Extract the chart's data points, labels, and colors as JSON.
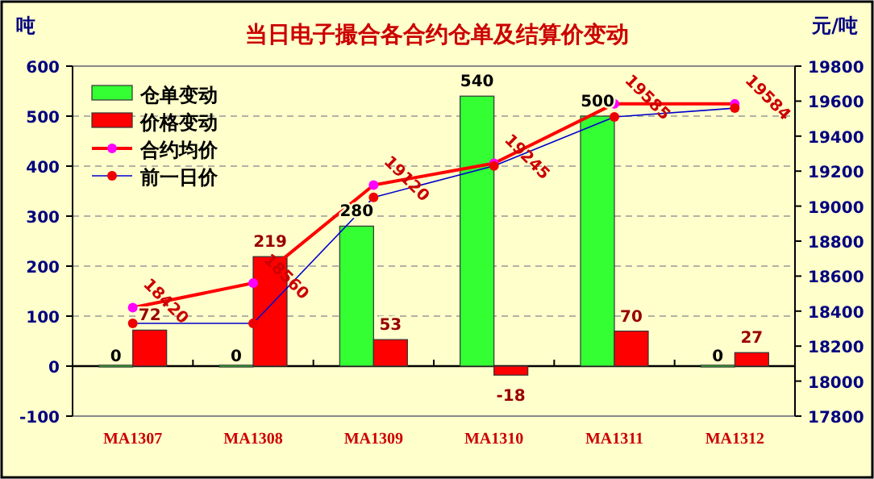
{
  "chart_data": {
    "type": "bar",
    "title": "当日电子撮合各合约仓单及结算价变动",
    "ylabel": "吨",
    "y2label": "元/吨",
    "categories": [
      "MA1307",
      "MA1308",
      "MA1309",
      "MA1310",
      "MA1311",
      "MA1312"
    ],
    "series": [
      {
        "name": "仓单变动",
        "color": "#33ff33",
        "values": [
          0,
          0,
          280,
          540,
          500,
          0
        ],
        "value_labels": [
          "0",
          "0",
          "280",
          "540",
          "500",
          "0"
        ]
      },
      {
        "name": "价格变动",
        "color": "#ff0000",
        "values": [
          72,
          219,
          53,
          -18,
          70,
          27
        ],
        "value_labels": [
          "72",
          "219",
          "53",
          "-18",
          "70",
          "27"
        ]
      },
      {
        "name": "合约均价",
        "type": "line",
        "axis": "y2",
        "color": "#ff0000",
        "marker": "circle",
        "values": [
          18420,
          18560,
          19120,
          19245,
          19585,
          19584
        ],
        "value_labels": [
          "18420",
          "18560",
          "19120",
          "19245",
          "19585",
          "19584"
        ]
      },
      {
        "name": "前一日价",
        "type": "line",
        "axis": "y2",
        "color": "#0000cc",
        "marker": "circle",
        "values": [
          18330,
          18330,
          19050,
          19230,
          19510,
          19560
        ]
      }
    ],
    "ylim": [
      -100,
      600
    ],
    "yticks": [
      -100,
      0,
      100,
      200,
      300,
      400,
      500,
      600
    ],
    "y2lim": [
      17800,
      19800
    ],
    "y2ticks": [
      17800,
      18000,
      18200,
      18400,
      18600,
      18800,
      19000,
      19200,
      19400,
      19600,
      19800
    ],
    "grid": "y",
    "legend": "top left"
  }
}
